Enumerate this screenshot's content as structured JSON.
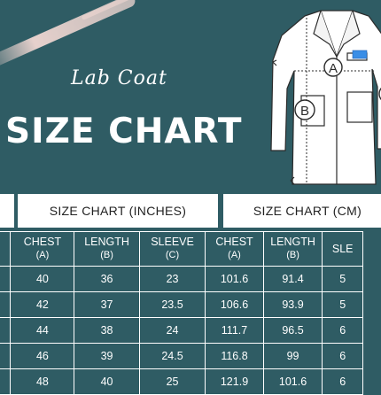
{
  "heading": {
    "script": "Lab Coat",
    "main": "SIZE CHART"
  },
  "diagram": {
    "label_a": "A",
    "label_b": "B"
  },
  "headers": {
    "left_cut": "",
    "inches": "SIZE CHART (INCHES)",
    "cm": "SIZE CHART (CM)"
  },
  "columns": [
    {
      "name": "",
      "sub": ""
    },
    {
      "name": "CHEST",
      "sub": "(A)"
    },
    {
      "name": "LENGTH",
      "sub": "(B)"
    },
    {
      "name": "SLEEVE",
      "sub": "(C)"
    },
    {
      "name": "CHEST",
      "sub": "(A)"
    },
    {
      "name": "LENGTH",
      "sub": "(B)"
    },
    {
      "name": "SLE",
      "sub": ""
    }
  ],
  "rows": [
    [
      "",
      "40",
      "36",
      "23",
      "101.6",
      "91.4",
      "5"
    ],
    [
      "",
      "42",
      "37",
      "23.5",
      "106.6",
      "93.9",
      "5"
    ],
    [
      "",
      "44",
      "38",
      "24",
      "111.7",
      "96.5",
      "6"
    ],
    [
      "",
      "46",
      "39",
      "24.5",
      "116.8",
      "99",
      "6"
    ],
    [
      "",
      "48",
      "40",
      "25",
      "121.9",
      "101.6",
      "6"
    ]
  ]
}
